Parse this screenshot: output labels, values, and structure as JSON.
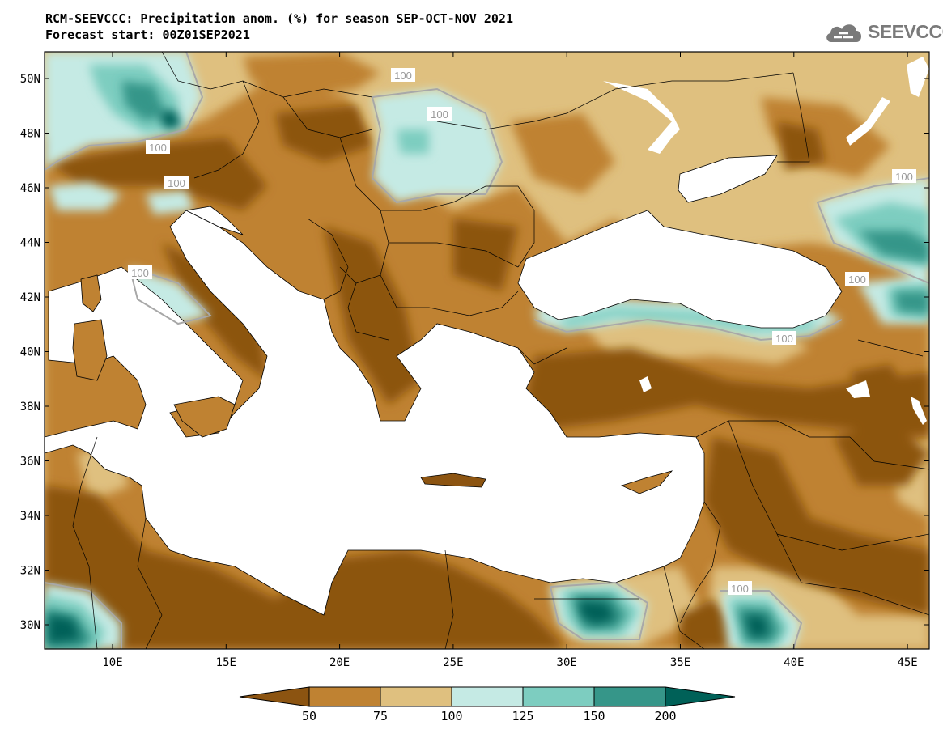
{
  "header": {
    "title_line1": "RCM-SEEVCCC: Precipitation anom. (%) for season SEP-OCT-NOV 2021",
    "title_line2": "Forecast start: 00Z01SEP2021"
  },
  "logo": {
    "text": "SEEVCCC",
    "icon": "cloud-icon"
  },
  "map": {
    "lat_ticks": [
      "50N",
      "48N",
      "46N",
      "44N",
      "42N",
      "40N",
      "38N",
      "36N",
      "34N",
      "32N",
      "30N"
    ],
    "lon_ticks": [
      "10E",
      "15E",
      "20E",
      "25E",
      "30E",
      "35E",
      "40E",
      "45E"
    ],
    "contour_labels": [
      "100",
      "100",
      "100",
      "100",
      "100",
      "100",
      "100",
      "100",
      "100"
    ],
    "colors": {
      "lt50": "#8c5411",
      "50_75": "#bf8232",
      "75_100": "#dfc07f",
      "100_125": "#c5eae4",
      "125_150": "#7dcdc0",
      "150_200": "#369689",
      "gt200": "#006158",
      "sea": "#ffffff"
    }
  },
  "colorbar": {
    "labels": [
      "50",
      "75",
      "100",
      "125",
      "150",
      "200"
    ]
  }
}
